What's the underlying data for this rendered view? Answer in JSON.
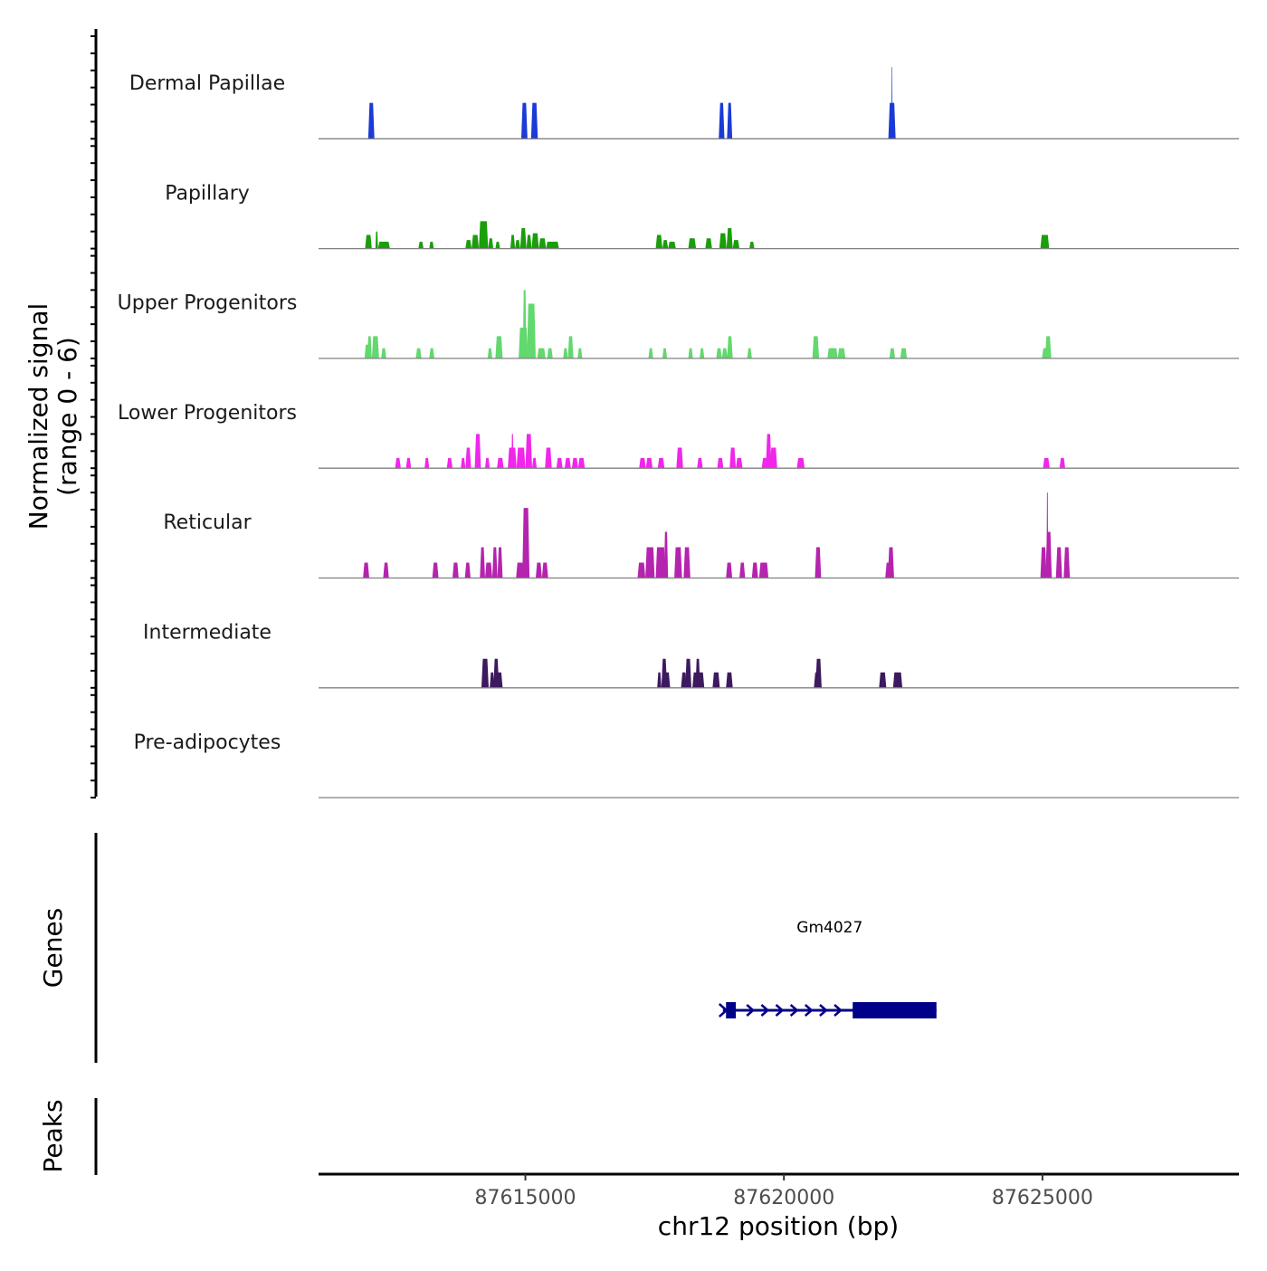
{
  "chart_data": {
    "type": "area",
    "title": "",
    "xlabel": "chr12 position (bp)",
    "ylabel_lines": [
      "Normalized signal",
      "(range 0 - 6)"
    ],
    "signal_range": [
      0,
      6
    ],
    "xlim": [
      87611000,
      87628800
    ],
    "x_ticks": [
      87615000,
      87620000,
      87625000
    ],
    "x_tick_labels": [
      "87615000",
      "87620000",
      "87625000"
    ],
    "tracks": [
      {
        "name": "Dermal Papillae",
        "color": "#1a3bd6",
        "peaks": [
          [
            87611960,
            87612080,
            2.1
          ],
          [
            87614920,
            87615040,
            2.1
          ],
          [
            87615110,
            87615240,
            2.1
          ],
          [
            87618740,
            87618850,
            2.1
          ],
          [
            87618900,
            87619000,
            2.1
          ],
          [
            87622020,
            87622160,
            2.1
          ],
          [
            87622080,
            87622100,
            4.2
          ]
        ]
      },
      {
        "name": "Papillary",
        "color": "#1a9e0a",
        "peaks": [
          [
            87611900,
            87612030,
            0.8
          ],
          [
            87612100,
            87612150,
            1.0
          ],
          [
            87612150,
            87612380,
            0.4
          ],
          [
            87612930,
            87613030,
            0.4
          ],
          [
            87613140,
            87613230,
            0.4
          ],
          [
            87613840,
            87613960,
            0.5
          ],
          [
            87613960,
            87614100,
            0.8
          ],
          [
            87614100,
            87614280,
            1.6
          ],
          [
            87614280,
            87614380,
            0.6
          ],
          [
            87614420,
            87614510,
            0.4
          ],
          [
            87614710,
            87614800,
            0.8
          ],
          [
            87614800,
            87614900,
            0.5
          ],
          [
            87614900,
            87615020,
            1.2
          ],
          [
            87615020,
            87615120,
            0.8
          ],
          [
            87615120,
            87615260,
            0.9
          ],
          [
            87615260,
            87615400,
            0.6
          ],
          [
            87615400,
            87615650,
            0.4
          ],
          [
            87617520,
            87617650,
            0.8
          ],
          [
            87617650,
            87617760,
            0.5
          ],
          [
            87617760,
            87617910,
            0.4
          ],
          [
            87618150,
            87618300,
            0.6
          ],
          [
            87618480,
            87618610,
            0.6
          ],
          [
            87618750,
            87618890,
            0.9
          ],
          [
            87618890,
            87619010,
            1.2
          ],
          [
            87619010,
            87619140,
            0.5
          ],
          [
            87619330,
            87619430,
            0.4
          ],
          [
            87624960,
            87625130,
            0.8
          ]
        ]
      },
      {
        "name": "Upper Progenitors",
        "color": "#62d86e",
        "peaks": [
          [
            87611890,
            87611980,
            0.8
          ],
          [
            87611940,
            87612030,
            1.3
          ],
          [
            87612030,
            87612170,
            1.3
          ],
          [
            87612210,
            87612310,
            0.6
          ],
          [
            87612880,
            87612990,
            0.6
          ],
          [
            87613140,
            87613240,
            0.6
          ],
          [
            87614270,
            87614360,
            0.6
          ],
          [
            87614420,
            87614560,
            1.3
          ],
          [
            87614870,
            87615050,
            1.8
          ],
          [
            87614950,
            87615020,
            4.0
          ],
          [
            87615030,
            87615200,
            3.2
          ],
          [
            87615230,
            87615390,
            0.6
          ],
          [
            87615420,
            87615530,
            0.6
          ],
          [
            87615730,
            87615820,
            0.6
          ],
          [
            87615820,
            87615930,
            1.3
          ],
          [
            87616010,
            87616100,
            0.6
          ],
          [
            87617380,
            87617470,
            0.6
          ],
          [
            87617650,
            87617740,
            0.6
          ],
          [
            87618150,
            87618240,
            0.6
          ],
          [
            87618370,
            87618460,
            0.6
          ],
          [
            87618690,
            87618800,
            0.6
          ],
          [
            87618800,
            87618910,
            0.6
          ],
          [
            87618900,
            87619010,
            1.3
          ],
          [
            87619290,
            87619380,
            0.6
          ],
          [
            87620550,
            87620680,
            1.3
          ],
          [
            87620840,
            87621040,
            0.6
          ],
          [
            87621040,
            87621190,
            0.6
          ],
          [
            87622040,
            87622150,
            0.6
          ],
          [
            87622250,
            87622380,
            0.6
          ],
          [
            87624990,
            87625120,
            0.6
          ],
          [
            87625050,
            87625170,
            1.3
          ]
        ]
      },
      {
        "name": "Lower Progenitors",
        "color": "#f026ea",
        "peaks": [
          [
            87612480,
            87612590,
            0.6
          ],
          [
            87612690,
            87612790,
            0.6
          ],
          [
            87613050,
            87613140,
            0.6
          ],
          [
            87613480,
            87613590,
            0.6
          ],
          [
            87613750,
            87613840,
            0.6
          ],
          [
            87613840,
            87613950,
            1.2
          ],
          [
            87614020,
            87614140,
            2.0
          ],
          [
            87614220,
            87614310,
            0.6
          ],
          [
            87614450,
            87614580,
            0.6
          ],
          [
            87614660,
            87614830,
            1.2
          ],
          [
            87614730,
            87614770,
            2.0
          ],
          [
            87614830,
            87615000,
            1.2
          ],
          [
            87615000,
            87615130,
            2.0
          ],
          [
            87615130,
            87615220,
            0.6
          ],
          [
            87615380,
            87615510,
            1.2
          ],
          [
            87615600,
            87615720,
            0.6
          ],
          [
            87615760,
            87615880,
            0.6
          ],
          [
            87615900,
            87616020,
            0.6
          ],
          [
            87616020,
            87616150,
            0.6
          ],
          [
            87617200,
            87617330,
            0.6
          ],
          [
            87617330,
            87617460,
            0.6
          ],
          [
            87617560,
            87617690,
            0.6
          ],
          [
            87617920,
            87618050,
            1.2
          ],
          [
            87618320,
            87618430,
            0.6
          ],
          [
            87618710,
            87618830,
            0.6
          ],
          [
            87618950,
            87619070,
            1.2
          ],
          [
            87619070,
            87619200,
            0.6
          ],
          [
            87619570,
            87619720,
            0.6
          ],
          [
            87619650,
            87619760,
            2.0
          ],
          [
            87619730,
            87619870,
            1.2
          ],
          [
            87620250,
            87620400,
            0.6
          ],
          [
            87625010,
            87625140,
            0.6
          ],
          [
            87625330,
            87625440,
            0.6
          ]
        ]
      },
      {
        "name": "Reticular",
        "color": "#b524ae",
        "peaks": [
          [
            87611860,
            87611980,
            0.9
          ],
          [
            87612250,
            87612360,
            0.9
          ],
          [
            87613200,
            87613320,
            0.9
          ],
          [
            87613590,
            87613710,
            0.9
          ],
          [
            87613830,
            87613940,
            0.9
          ],
          [
            87614120,
            87614220,
            1.8
          ],
          [
            87614220,
            87614360,
            0.9
          ],
          [
            87614360,
            87614460,
            1.8
          ],
          [
            87614460,
            87614560,
            1.8
          ],
          [
            87614820,
            87614970,
            0.9
          ],
          [
            87614940,
            87615080,
            4.1
          ],
          [
            87615200,
            87615320,
            0.9
          ],
          [
            87615320,
            87615440,
            0.9
          ],
          [
            87617170,
            87617320,
            0.9
          ],
          [
            87617320,
            87617500,
            1.8
          ],
          [
            87617520,
            87617710,
            1.8
          ],
          [
            87617680,
            87617760,
            2.7
          ],
          [
            87617880,
            87618030,
            1.8
          ],
          [
            87618060,
            87618190,
            1.8
          ],
          [
            87618880,
            87619000,
            0.9
          ],
          [
            87619140,
            87619250,
            0.9
          ],
          [
            87619380,
            87619500,
            0.9
          ],
          [
            87619520,
            87619700,
            0.9
          ],
          [
            87620600,
            87620720,
            1.8
          ],
          [
            87621960,
            87622080,
            0.9
          ],
          [
            87622010,
            87622130,
            1.8
          ],
          [
            87624960,
            87625080,
            1.8
          ],
          [
            87625060,
            87625180,
            2.7
          ],
          [
            87625080,
            87625110,
            5.0
          ],
          [
            87625260,
            87625380,
            1.8
          ],
          [
            87625410,
            87625530,
            1.8
          ],
          [
            87625420,
            87625500,
            0.9
          ]
        ]
      },
      {
        "name": "Intermediate",
        "color": "#3d1a5e",
        "peaks": [
          [
            87614150,
            87614290,
            1.7
          ],
          [
            87614310,
            87614400,
            0.9
          ],
          [
            87614380,
            87614490,
            1.7
          ],
          [
            87614430,
            87614560,
            0.9
          ],
          [
            87617550,
            87617630,
            0.9
          ],
          [
            87617630,
            87617740,
            1.7
          ],
          [
            87617680,
            87617800,
            0.9
          ],
          [
            87618010,
            87618120,
            0.9
          ],
          [
            87618090,
            87618210,
            1.7
          ],
          [
            87618230,
            87618340,
            0.9
          ],
          [
            87618290,
            87618380,
            1.7
          ],
          [
            87618340,
            87618460,
            0.9
          ],
          [
            87618620,
            87618760,
            0.9
          ],
          [
            87618880,
            87619010,
            0.9
          ],
          [
            87620580,
            87620690,
            0.9
          ],
          [
            87620610,
            87620730,
            1.7
          ],
          [
            87621840,
            87621980,
            0.9
          ],
          [
            87622110,
            87622290,
            0.9
          ]
        ]
      },
      {
        "name": "Pre-adipocytes",
        "color": "#2a0c3a",
        "peaks": []
      }
    ],
    "gene_track_title": "Genes",
    "peaks_track_title": "Peaks",
    "genes": [
      {
        "name": "Gm4027",
        "strand": "+",
        "start": 87618820,
        "end": 87622950,
        "color": "#000088",
        "exons": [
          [
            87618880,
            87619070
          ],
          [
            87621330,
            87622950
          ]
        ]
      }
    ]
  }
}
